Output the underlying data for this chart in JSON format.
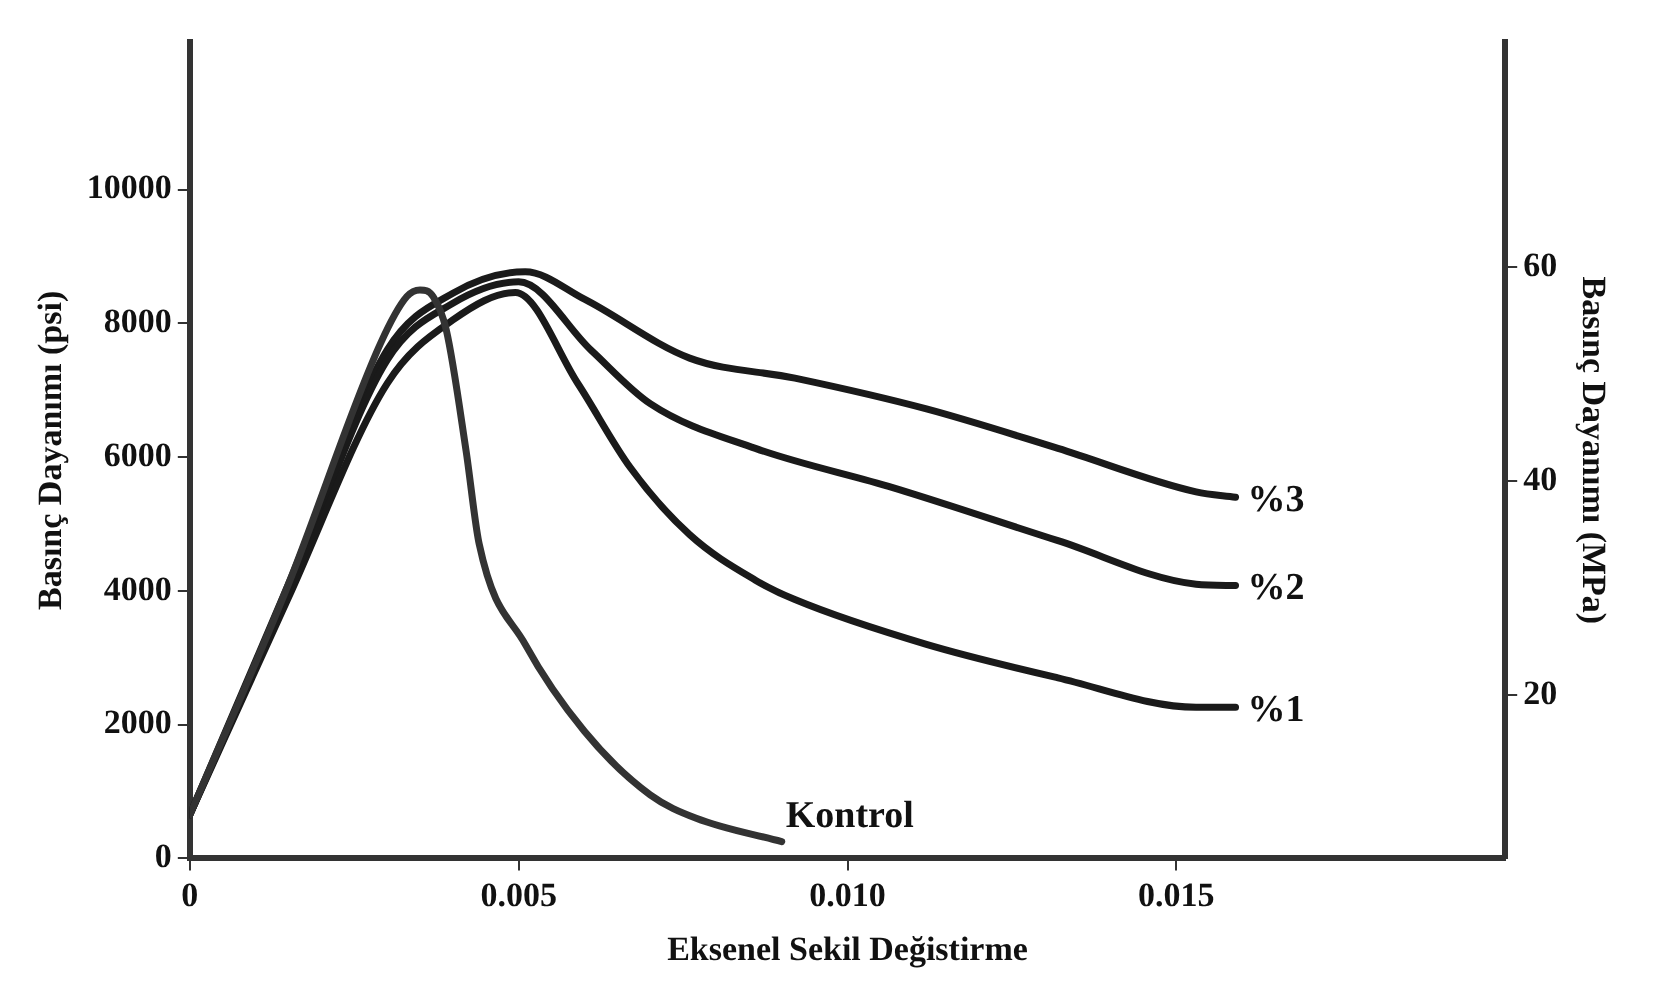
{
  "chart_data": {
    "type": "line",
    "xlabel": "Eksenel Sekil Değistirme",
    "ylabel": "Basınç Dayanımı (psi)",
    "y2label": "Basınç Dayanımı (MPa)",
    "xlim": [
      0,
      0.02
    ],
    "xticks": [
      0,
      {
        "value": 0.005,
        "label": "0.005"
      },
      {
        "value": 0.01,
        "label": "0.010"
      },
      {
        "value": 0.015,
        "label": "0.015"
      }
    ],
    "ylim": [
      0,
      12200
    ],
    "yticks": [
      0,
      2000,
      4000,
      6000,
      8000,
      10000
    ],
    "y2lim": [
      4.7,
      81
    ],
    "y2ticks": [
      20,
      40,
      60
    ],
    "grid": false,
    "legend": false,
    "marker": "none",
    "line_style": "solid",
    "series": [
      {
        "name": "Kontrol",
        "color": "#333333",
        "x": [
          0,
          0.0015,
          0.0029,
          0.0033,
          0.0035,
          0.0037,
          0.0039,
          0.0042,
          0.0044,
          0.0051,
          0.006,
          0.007,
          0.0077,
          0.009
        ],
        "values": [
          650,
          4100,
          7700,
          8400,
          8500,
          8400,
          7900,
          6100,
          4700,
          3200,
          1900,
          950,
          600,
          250
        ]
      },
      {
        "name": "%1",
        "color": "#1a1a1a",
        "x": [
          0,
          0.0015,
          0.003,
          0.004,
          0.00495,
          0.0059,
          0.0067,
          0.0076,
          0.0086,
          0.0092,
          0.0112,
          0.0132,
          0.0153,
          0.0159
        ],
        "values": [
          650,
          3900,
          7100,
          8050,
          8460,
          7100,
          5840,
          4840,
          4160,
          3870,
          3200,
          2700,
          2260,
          2260
        ]
      },
      {
        "name": "%2",
        "color": "#1a1a1a",
        "x": [
          0,
          0.0015,
          0.003,
          0.004,
          0.005,
          0.0061,
          0.007,
          0.0086,
          0.0107,
          0.0132,
          0.0153,
          0.0159
        ],
        "values": [
          650,
          4000,
          7450,
          8300,
          8620,
          7600,
          6800,
          6130,
          5540,
          4750,
          4100,
          4080
        ]
      },
      {
        "name": "%3",
        "color": "#1a1a1a",
        "x": [
          0,
          0.0015,
          0.003,
          0.004,
          0.0051,
          0.006,
          0.0076,
          0.0092,
          0.0112,
          0.0132,
          0.0153,
          0.0159
        ],
        "values": [
          650,
          4100,
          7600,
          8450,
          8770,
          8360,
          7480,
          7180,
          6720,
          6130,
          5480,
          5400
        ]
      }
    ]
  }
}
